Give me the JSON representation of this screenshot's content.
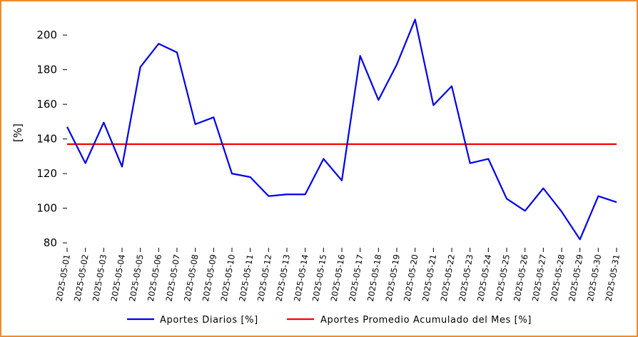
{
  "chart_data": {
    "type": "line",
    "title": "",
    "xlabel": "",
    "ylabel": "[%]",
    "ylim": [
      78,
      212
    ],
    "yticks": [
      80,
      100,
      120,
      140,
      160,
      180,
      200
    ],
    "grid": false,
    "legend_position": "bottom-center",
    "x": [
      "2025-05-01",
      "2025-05-02",
      "2025-05-03",
      "2025-05-04",
      "2025-05-05",
      "2025-05-06",
      "2025-05-07",
      "2025-05-08",
      "2025-05-09",
      "2025-05-10",
      "2025-05-11",
      "2025-05-12",
      "2025-05-13",
      "2025-05-14",
      "2025-05-15",
      "2025-05-16",
      "2025-05-17",
      "2025-05-18",
      "2025-05-19",
      "2025-05-20",
      "2025-05-21",
      "2025-05-22",
      "2025-05-23",
      "2025-05-24",
      "2025-05-25",
      "2025-05-26",
      "2025-05-27",
      "2025-05-28",
      "2025-05-29",
      "2025-05-30",
      "2025-05-31"
    ],
    "series": [
      {
        "name": "Aportes Diarios [%]",
        "color": "#0000e6",
        "values": [
          147,
          126,
          149.5,
          124,
          181.5,
          195,
          190,
          148.5,
          152.5,
          120,
          118,
          107,
          108,
          108,
          128.5,
          116,
          188,
          162.5,
          183,
          209,
          159.5,
          170.5,
          126,
          128.5,
          105.5,
          98.5,
          111.5,
          98,
          82,
          107,
          103.5
        ]
      },
      {
        "name": "Aportes Promedio Acumulado del Mes [%]",
        "color": "#ff0000",
        "values": [
          137,
          137,
          137,
          137,
          137,
          137,
          137,
          137,
          137,
          137,
          137,
          137,
          137,
          137,
          137,
          137,
          137,
          137,
          137,
          137,
          137,
          137,
          137,
          137,
          137,
          137,
          137,
          137,
          137,
          137,
          137
        ]
      }
    ]
  }
}
